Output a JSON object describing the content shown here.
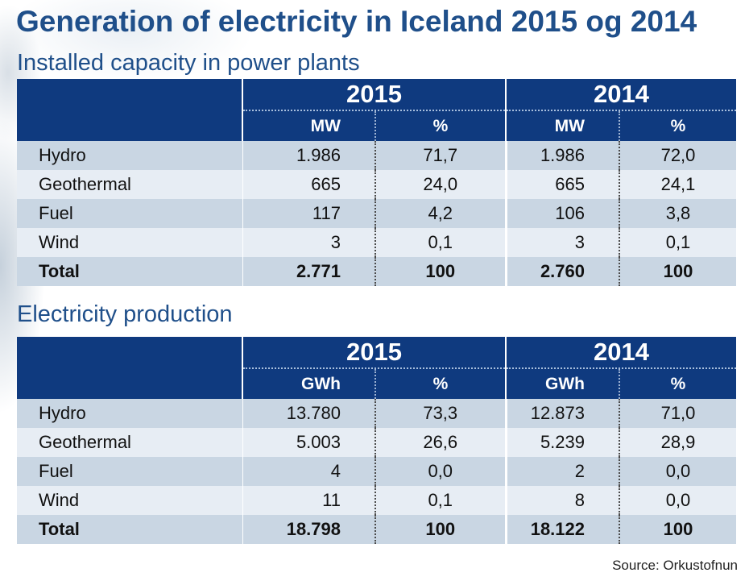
{
  "title": "Generation of electricity in Iceland 2015 og 2014",
  "capacity": {
    "heading": "Installed capacity in power plants",
    "year_a": "2015",
    "year_b": "2014",
    "unit_a": "MW",
    "pct_a": "%",
    "unit_b": "MW",
    "pct_b": "%",
    "rows": [
      {
        "label": "Hydro",
        "v2015": "1.986",
        "p2015": "71,7",
        "v2014": "1.986",
        "p2014": "72,0"
      },
      {
        "label": "Geothermal",
        "v2015": "665",
        "p2015": "24,0",
        "v2014": "665",
        "p2014": "24,1"
      },
      {
        "label": "Fuel",
        "v2015": "117",
        "p2015": "4,2",
        "v2014": "106",
        "p2014": "3,8"
      },
      {
        "label": "Wind",
        "v2015": "3",
        "p2015": "0,1",
        "v2014": "3",
        "p2014": "0,1"
      },
      {
        "label": "Total",
        "v2015": "2.771",
        "p2015": "100",
        "v2014": "2.760",
        "p2014": "100"
      }
    ]
  },
  "production": {
    "heading": "Electricity production",
    "year_a": "2015",
    "year_b": "2014",
    "unit_a": "GWh",
    "pct_a": "%",
    "unit_b": "GWh",
    "pct_b": "%",
    "rows": [
      {
        "label": "Hydro",
        "v2015": "13.780",
        "p2015": "73,3",
        "v2014": "12.873",
        "p2014": "71,0"
      },
      {
        "label": "Geothermal",
        "v2015": "5.003",
        "p2015": "26,6",
        "v2014": "5.239",
        "p2014": "28,9"
      },
      {
        "label": "Fuel",
        "v2015": "4",
        "p2015": "0,0",
        "v2014": "2",
        "p2014": "0,0"
      },
      {
        "label": "Wind",
        "v2015": "11",
        "p2015": "0,1",
        "v2014": "8",
        "p2014": "0,0"
      },
      {
        "label": "Total",
        "v2015": "18.798",
        "p2015": "100",
        "v2014": "18.122",
        "p2014": "100"
      }
    ]
  },
  "source": "Source: Orkustofnun"
}
